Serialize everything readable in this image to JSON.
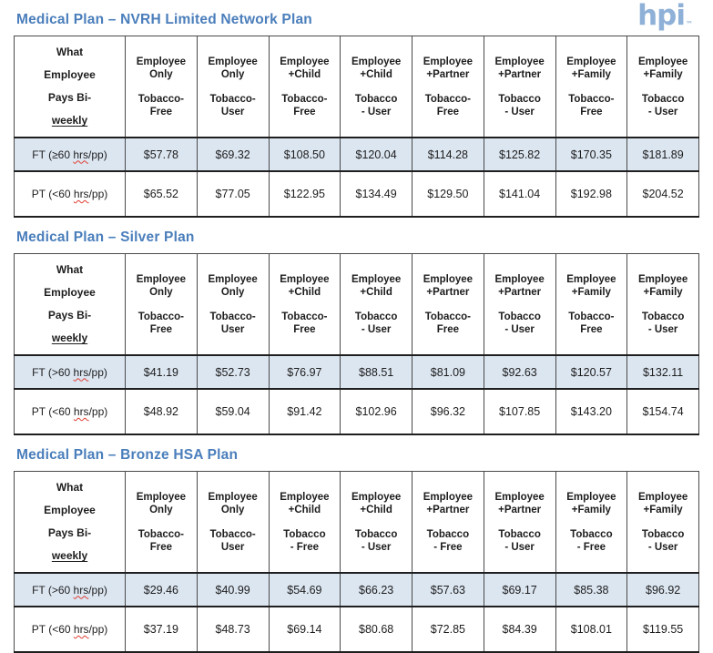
{
  "logo": {
    "text": "hpi",
    "tm": "™",
    "color": "#8fb1d8"
  },
  "tables": [
    {
      "title": "Medical Plan – NVRH Limited Network Plan",
      "corner": {
        "main": "What\nEmployee\nPays Bi-",
        "underlined": "weekly"
      },
      "columns": [
        {
          "tier": "Employee\nOnly",
          "tobacco": "Tobacco-\nFree"
        },
        {
          "tier": "Employee\nOnly",
          "tobacco": "Tobacco-\nUser"
        },
        {
          "tier": "Employee\n+Child",
          "tobacco": "Tobacco-\nFree"
        },
        {
          "tier": "Employee\n+Child",
          "tobacco": "Tobacco\n- User"
        },
        {
          "tier": "Employee\n+Partner",
          "tobacco": "Tobacco-\nFree"
        },
        {
          "tier": "Employee\n+Partner",
          "tobacco": "Tobacco\n- User"
        },
        {
          "tier": "Employee\n+Family",
          "tobacco": "Tobacco-\nFree"
        },
        {
          "tier": "Employee\n+Family",
          "tobacco": "Tobacco\n- User"
        }
      ],
      "rows": [
        {
          "label": [
            "FT (≥60 ",
            "hrs",
            "/pp)"
          ],
          "values": [
            "$57.78",
            "$69.32",
            "$108.50",
            "$120.04",
            "$114.28",
            "$125.82",
            "$170.35",
            "$181.89"
          ]
        },
        {
          "label": [
            "PT (<60 ",
            "hrs",
            "/pp)"
          ],
          "values": [
            "$65.52",
            "$77.05",
            "$122.95",
            "$134.49",
            "$129.50",
            "$141.04",
            "$192.98",
            "$204.52"
          ]
        }
      ]
    },
    {
      "title": "Medical Plan – Silver Plan",
      "corner": {
        "main": "What\nEmployee\nPays Bi-",
        "underlined": "weekly"
      },
      "columns": [
        {
          "tier": "Employee\nOnly",
          "tobacco": "Tobacco-\nFree"
        },
        {
          "tier": "Employee\nOnly",
          "tobacco": "Tobacco-\nUser"
        },
        {
          "tier": "Employee\n+Child",
          "tobacco": "Tobacco-\nFree"
        },
        {
          "tier": "Employee\n+Child",
          "tobacco": "Tobacco\n- User"
        },
        {
          "tier": "Employee\n+Partner",
          "tobacco": "Tobacco-\nFree"
        },
        {
          "tier": "Employee\n+Partner",
          "tobacco": "Tobacco\n- User"
        },
        {
          "tier": "Employee\n+Family",
          "tobacco": "Tobacco-\nFree"
        },
        {
          "tier": "Employee\n+Family",
          "tobacco": "Tobacco\n- User"
        }
      ],
      "rows": [
        {
          "label": [
            "FT (>60 ",
            "hrs",
            "/pp)"
          ],
          "values": [
            "$41.19",
            "$52.73",
            "$76.97",
            "$88.51",
            "$81.09",
            "$92.63",
            "$120.57",
            "$132.11"
          ]
        },
        {
          "label": [
            "PT (<60 ",
            "hrs",
            "/pp)"
          ],
          "values": [
            "$48.92",
            "$59.04",
            "$91.42",
            "$102.96",
            "$96.32",
            "$107.85",
            "$143.20",
            "$154.74"
          ]
        }
      ]
    },
    {
      "title": "Medical Plan – Bronze HSA Plan",
      "corner": {
        "main": "What\nEmployee\nPays Bi-",
        "underlined": "weekly"
      },
      "columns": [
        {
          "tier": "Employee\nOnly",
          "tobacco": "Tobacco-\nFree"
        },
        {
          "tier": "Employee\nOnly",
          "tobacco": "Tobacco-\nUser"
        },
        {
          "tier": "Employee\n+Child",
          "tobacco": "Tobacco\n- Free"
        },
        {
          "tier": "Employee\n+Child",
          "tobacco": "Tobacco\n- User"
        },
        {
          "tier": "Employee\n+Partner",
          "tobacco": "Tobacco\n- Free"
        },
        {
          "tier": "Employee\n+Partner",
          "tobacco": "Tobacco\n- User"
        },
        {
          "tier": "Employee\n+Family",
          "tobacco": "Tobacco\n- Free"
        },
        {
          "tier": "Employee\n+Family",
          "tobacco": "Tobacco\n- User"
        }
      ],
      "rows": [
        {
          "label": [
            "FT (>60 ",
            "hrs",
            "/pp)"
          ],
          "values": [
            "$29.46",
            "$40.99",
            "$54.69",
            "$66.23",
            "$57.63",
            "$69.17",
            "$85.38",
            "$96.92"
          ]
        },
        {
          "label": [
            "PT (<60 ",
            "hrs",
            "/pp)"
          ],
          "values": [
            "$37.19",
            "$48.73",
            "$69.14",
            "$80.68",
            "$72.85",
            "$84.39",
            "$108.01",
            "$119.55"
          ]
        }
      ]
    }
  ]
}
